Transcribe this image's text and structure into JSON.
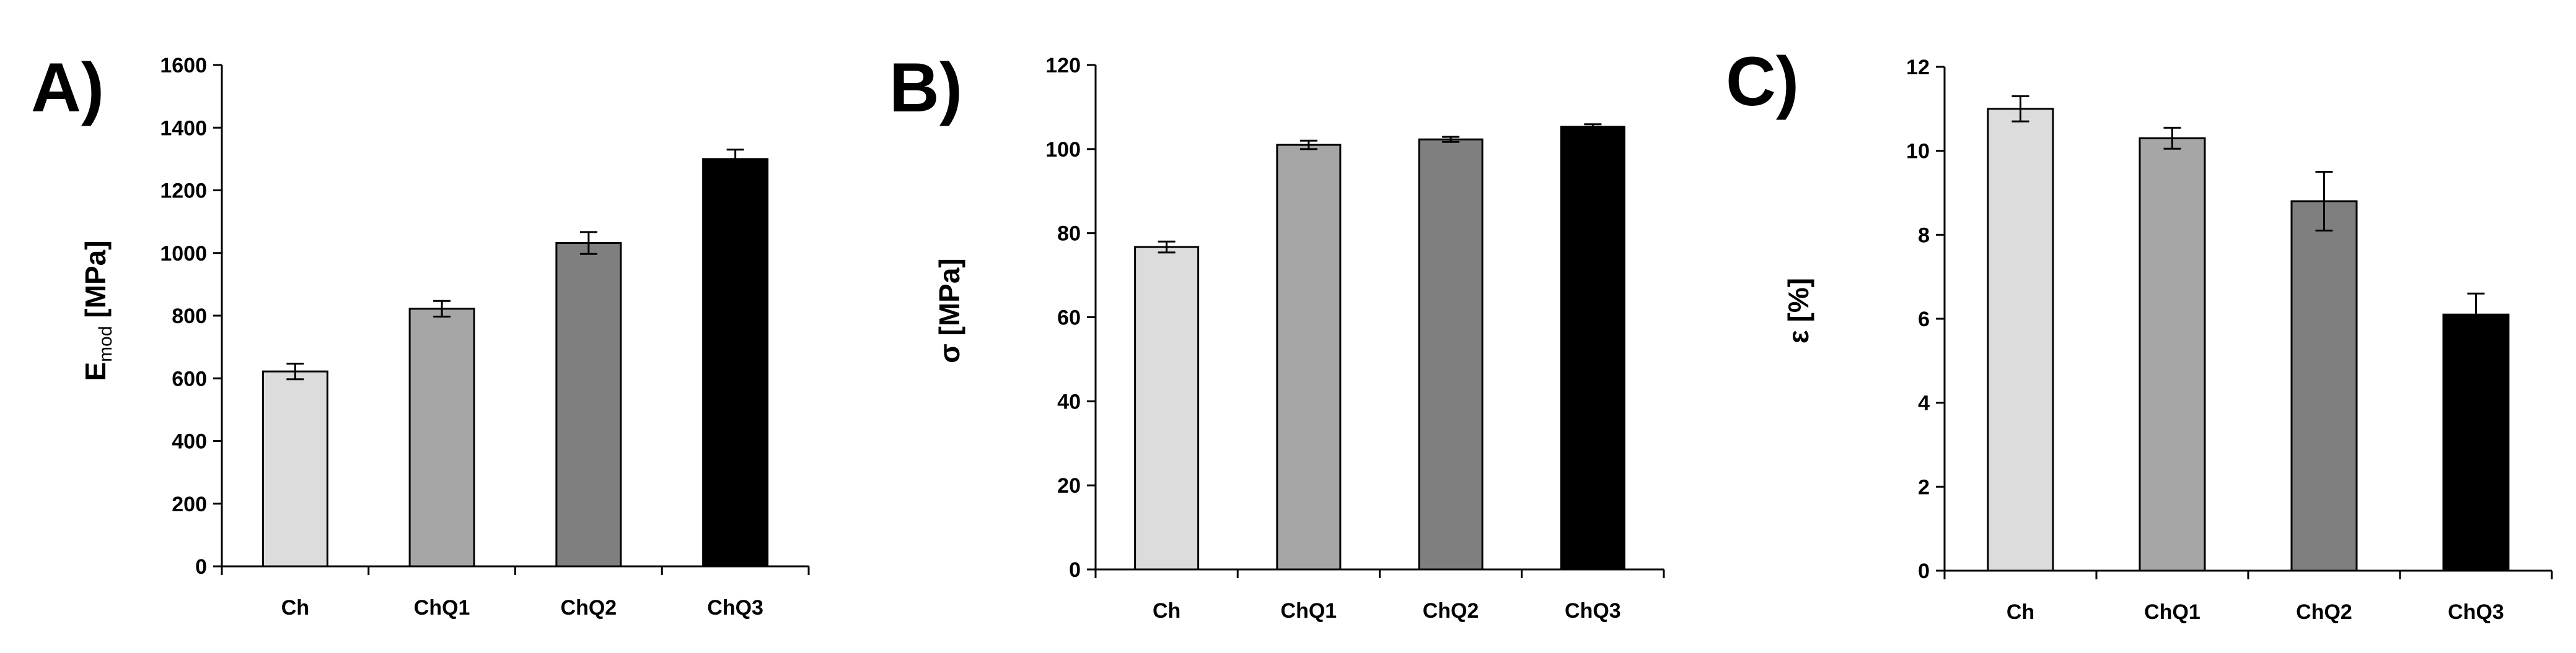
{
  "chart_data": [
    {
      "type": "bar",
      "panel_label": "A)",
      "title": "",
      "xlabel": "",
      "ylabel_main": "E",
      "ylabel_sub": "mod",
      "ylabel_rest": " [MPa]",
      "categories": [
        "Ch",
        "ChQ1",
        "ChQ2",
        "ChQ3"
      ],
      "values": [
        622,
        822,
        1032,
        1300
      ],
      "errors": [
        25,
        25,
        35,
        30
      ],
      "bar_colors": [
        "#dcdcdc",
        "#a6a6a6",
        "#7f7f7f",
        "#000000"
      ],
      "ylim": [
        0,
        1600
      ],
      "yticks": [
        0,
        200,
        400,
        600,
        800,
        1000,
        1200,
        1400,
        1600
      ],
      "grid": false,
      "legend": "none"
    },
    {
      "type": "bar",
      "panel_label": "B)",
      "title": "",
      "xlabel": "",
      "ylabel_main": "σ [MPa]",
      "ylabel_sub": "",
      "ylabel_rest": "",
      "categories": [
        "Ch",
        "ChQ1",
        "ChQ2",
        "ChQ3"
      ],
      "values": [
        76.7,
        101,
        102.3,
        105.3
      ],
      "errors": [
        1.3,
        1.0,
        0.6,
        0.6
      ],
      "bar_colors": [
        "#dcdcdc",
        "#a6a6a6",
        "#7f7f7f",
        "#000000"
      ],
      "ylim": [
        0,
        120
      ],
      "yticks": [
        0,
        20,
        40,
        60,
        80,
        100,
        120
      ],
      "grid": false,
      "legend": "none"
    },
    {
      "type": "bar",
      "panel_label": "C)",
      "title": "",
      "xlabel": "",
      "ylabel_main": "ε [%]",
      "ylabel_sub": "",
      "ylabel_rest": "",
      "categories": [
        "Ch",
        "ChQ1",
        "ChQ2",
        "ChQ3"
      ],
      "values": [
        11.0,
        10.3,
        8.8,
        6.1
      ],
      "errors": [
        0.3,
        0.25,
        0.7,
        0.5
      ],
      "bar_colors": [
        "#dcdcdc",
        "#a6a6a6",
        "#7f7f7f",
        "#000000"
      ],
      "ylim": [
        0,
        12
      ],
      "yticks": [
        0,
        2,
        4,
        6,
        8,
        10,
        12
      ],
      "grid": false,
      "legend": "none"
    }
  ]
}
